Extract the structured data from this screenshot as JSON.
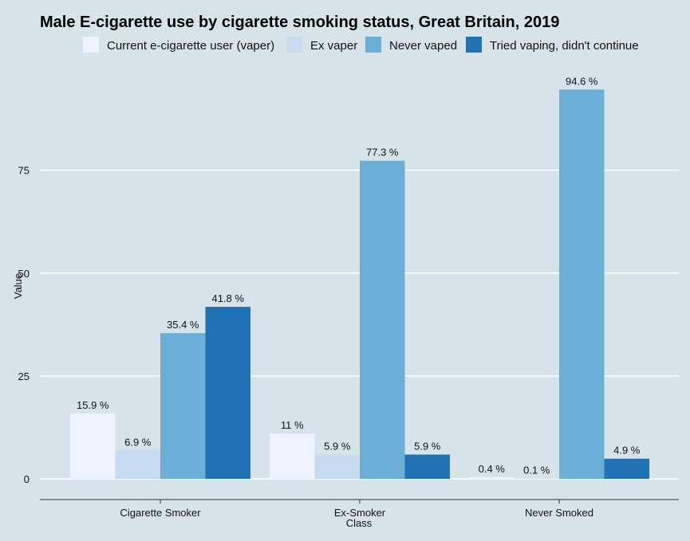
{
  "chart_data": {
    "type": "bar",
    "title": "Male E-cigarette use by cigarette smoking status, Great Britain, 2019",
    "xlabel": "Class",
    "ylabel": "Value",
    "ylim": [
      0,
      98
    ],
    "yticks": [
      0,
      25,
      50,
      75
    ],
    "grid": true,
    "legend_position": "top",
    "categories": [
      "Cigarette Smoker",
      "Ex-Smoker",
      "Never Smoked"
    ],
    "series": [
      {
        "name": "Current e-cigarette user (vaper)",
        "color": "#eff3ff",
        "values": [
          15.9,
          11,
          0.4
        ],
        "labels": [
          "15.9 %",
          "11 %",
          "0.4 %"
        ]
      },
      {
        "name": "Ex vaper",
        "color": "#c6dbef",
        "values": [
          6.9,
          5.9,
          0.1
        ],
        "labels": [
          "6.9 %",
          "5.9 %",
          "0.1 %"
        ]
      },
      {
        "name": "Never vaped",
        "color": "#6baed6",
        "values": [
          35.4,
          77.3,
          94.6
        ],
        "labels": [
          "35.4 %",
          "77.3 %",
          "94.6 %"
        ]
      },
      {
        "name": "Tried vaping, didn't continue",
        "color": "#2171b5",
        "values": [
          41.8,
          5.9,
          4.9
        ],
        "labels": [
          "41.8 %",
          "5.9 %",
          "4.9 %"
        ]
      }
    ]
  }
}
